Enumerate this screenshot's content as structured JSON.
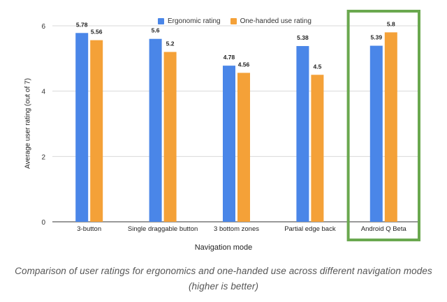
{
  "chart_data": {
    "type": "bar",
    "title": "",
    "xlabel": "Navigation mode",
    "ylabel": "Average user rating (out of 7)",
    "ylim": [
      0,
      6
    ],
    "yticks": [
      0,
      2,
      4,
      6
    ],
    "grid": true,
    "legend_position": "top-center",
    "categories": [
      "3-button",
      "Single draggable button",
      "3 bottom zones",
      "Partial edge back",
      "Android Q Beta"
    ],
    "series": [
      {
        "name": "Ergonomic rating",
        "color": "#4a86e8",
        "values": [
          5.78,
          5.6,
          4.78,
          5.38,
          5.39
        ]
      },
      {
        "name": "One-handed use rating",
        "color": "#f4a138",
        "values": [
          5.56,
          5.2,
          4.56,
          4.5,
          5.8
        ]
      }
    ],
    "highlight": {
      "category": "Android Q Beta",
      "color": "#6aa84f"
    }
  },
  "caption": "Comparison of user ratings for ergonomics and one-handed use across different navigation modes (higher is better)"
}
